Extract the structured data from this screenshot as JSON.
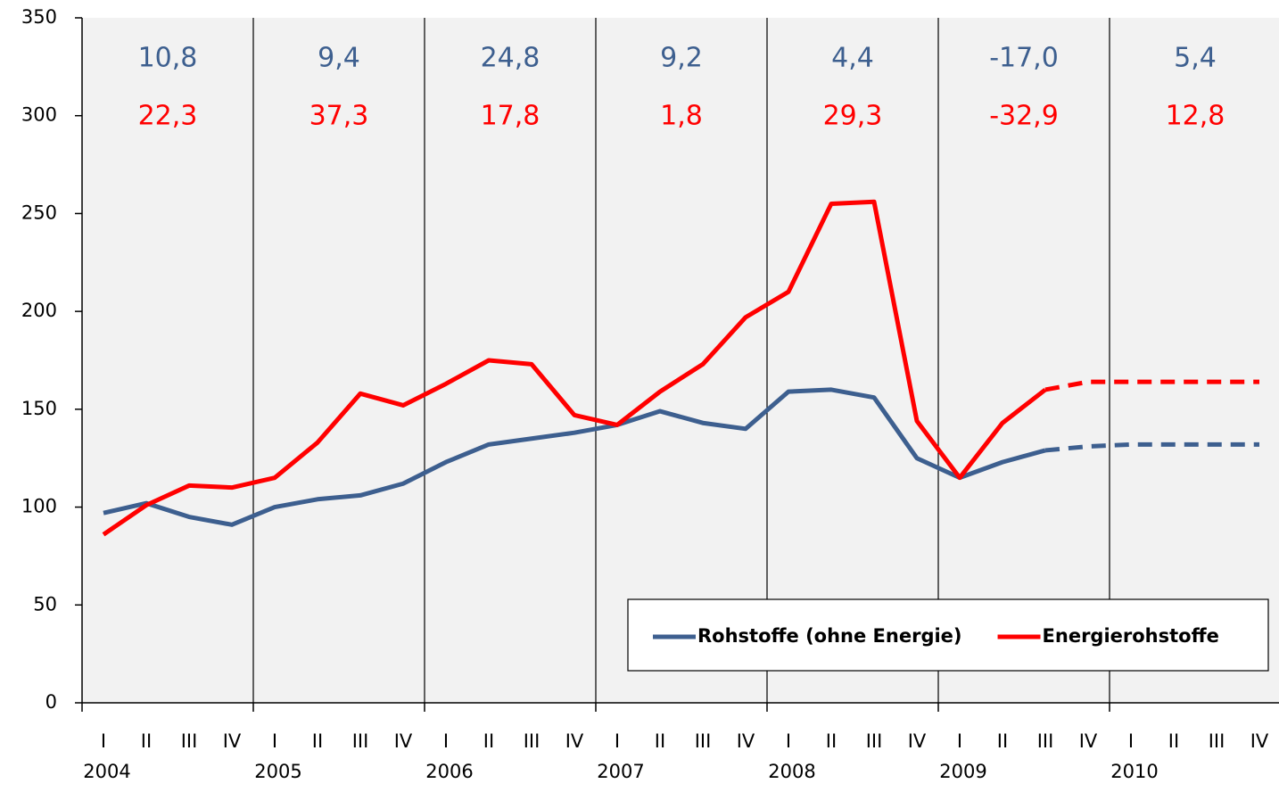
{
  "chart_data": {
    "type": "line",
    "categories": [
      "I",
      "II",
      "III",
      "IV",
      "I",
      "II",
      "III",
      "IV",
      "I",
      "II",
      "III",
      "IV",
      "I",
      "II",
      "III",
      "IV",
      "I",
      "II",
      "III",
      "IV",
      "I",
      "II",
      "III",
      "IV",
      "I",
      "II",
      "III",
      "IV"
    ],
    "years": [
      "2004",
      "2005",
      "2006",
      "2007",
      "2008",
      "2009",
      "2010"
    ],
    "series": [
      {
        "name": "Rohstoffe (ohne Energie)",
        "color": "#3d5f8f",
        "dashed_from": 22,
        "values": [
          97,
          102,
          95,
          91,
          100,
          104,
          106,
          112,
          123,
          132,
          135,
          138,
          142,
          149,
          143,
          140,
          159,
          160,
          156,
          125,
          115,
          123,
          129,
          131,
          132,
          132,
          132,
          132
        ],
        "annual_change": [
          {
            "value": 10.8,
            "label": "10,8"
          },
          {
            "value": 9.4,
            "label": "9,4"
          },
          {
            "value": 24.8,
            "label": "24,8"
          },
          {
            "value": 9.2,
            "label": "9,2"
          },
          {
            "value": 4.4,
            "label": "4,4"
          },
          {
            "value": -17.0,
            "label": "-17,0"
          },
          {
            "value": 5.4,
            "label": "5,4"
          }
        ]
      },
      {
        "name": "Energierohstoffe",
        "color": "#ff0000",
        "dashed_from": 22,
        "values": [
          86,
          101,
          111,
          110,
          115,
          133,
          158,
          152,
          163,
          175,
          173,
          147,
          142,
          159,
          173,
          197,
          210,
          255,
          256,
          144,
          115,
          143,
          160,
          164,
          164,
          164,
          164,
          164
        ],
        "annual_change": [
          {
            "value": 22.3,
            "label": "22,3"
          },
          {
            "value": 37.3,
            "label": "37,3"
          },
          {
            "value": 17.8,
            "label": "17,8"
          },
          {
            "value": 1.8,
            "label": "1,8"
          },
          {
            "value": 29.3,
            "label": "29,3"
          },
          {
            "value": -32.9,
            "label": "-32,9"
          },
          {
            "value": 12.8,
            "label": "12,8"
          }
        ]
      }
    ],
    "ylim": [
      0,
      350
    ],
    "yticks": [
      0,
      50,
      100,
      150,
      200,
      250,
      300,
      350
    ],
    "legend": "bottom-right",
    "plot_background": "#f2f2f2"
  }
}
